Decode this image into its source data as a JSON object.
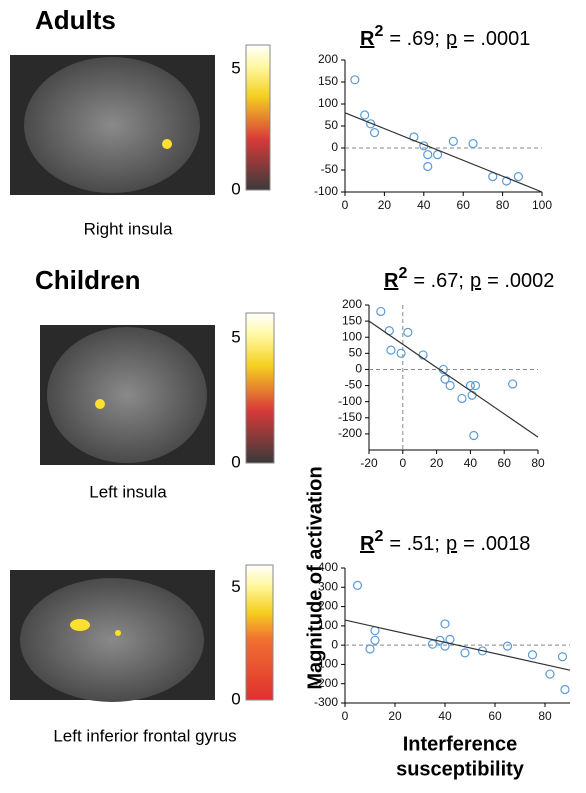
{
  "sections": [
    {
      "title": "Adults",
      "region": "Right insula",
      "colorbar_range": [
        0,
        6
      ],
      "colorbar_ticks": [
        0,
        5
      ]
    },
    {
      "title": "Children",
      "region": "Left insula",
      "colorbar_range": [
        0,
        6
      ],
      "colorbar_ticks": [
        0,
        5
      ]
    },
    {
      "region": "Left inferior frontal gyrus",
      "colorbar_range": [
        0,
        6
      ],
      "colorbar_ticks": [
        0,
        5
      ]
    }
  ],
  "y_axis_label": "Magnitude of activation",
  "x_axis_label": [
    "Interference",
    "susceptibility"
  ],
  "chart_data": [
    {
      "type": "scatter",
      "r_label": "R",
      "r_exponent": "2",
      "r_value": "= .69;",
      "p_label": "p",
      "p_value": "= .0001",
      "x": [
        5,
        10,
        13,
        15,
        35,
        40,
        42,
        42,
        47,
        55,
        65,
        75,
        82,
        88
      ],
      "y": [
        155,
        75,
        55,
        35,
        25,
        5,
        -15,
        -42,
        -15,
        15,
        10,
        -65,
        -75,
        -65
      ],
      "fit": {
        "x": [
          0,
          100
        ],
        "y": [
          80,
          -100
        ]
      },
      "color": "#5b9bd5",
      "xlim": [
        0,
        100
      ],
      "ylim": [
        -100,
        200
      ],
      "xticks": [
        0,
        20,
        40,
        60,
        80,
        100
      ],
      "yticks": [
        -100,
        -50,
        0,
        50,
        100,
        150,
        200
      ],
      "zero_lines": [
        "y"
      ]
    },
    {
      "type": "scatter",
      "r_label": "R",
      "r_exponent": "2",
      "r_value": "= .67;",
      "p_label": "p",
      "p_value": "= .0002",
      "x": [
        -13,
        -8,
        -7,
        -1,
        3,
        12,
        24,
        25,
        28,
        35,
        40,
        41,
        42,
        43,
        65
      ],
      "y": [
        180,
        120,
        60,
        50,
        115,
        45,
        0,
        -30,
        -50,
        -90,
        -50,
        -80,
        -205,
        -50,
        -45
      ],
      "fit": {
        "x": [
          -20,
          80
        ],
        "y": [
          150,
          -210
        ]
      },
      "color": "#5b9bd5",
      "xlim": [
        -20,
        80
      ],
      "ylim": [
        -250,
        200
      ],
      "xticks": [
        -20,
        0,
        20,
        40,
        60,
        80
      ],
      "yticks": [
        -200,
        -150,
        -100,
        -50,
        0,
        50,
        100,
        150,
        200
      ],
      "zero_lines": [
        "x",
        "y"
      ]
    },
    {
      "type": "scatter",
      "r_label": "R",
      "r_exponent": "2",
      "r_value": "= .51;",
      "p_label": "p",
      "p_value": "= .0018",
      "x": [
        5,
        10,
        12,
        12,
        35,
        38,
        40,
        42,
        40,
        48,
        55,
        65,
        75,
        82,
        87,
        88
      ],
      "y": [
        310,
        -20,
        75,
        25,
        5,
        25,
        110,
        30,
        -5,
        -40,
        -30,
        -5,
        -50,
        -150,
        -60,
        -230
      ],
      "fit": {
        "x": [
          0,
          90
        ],
        "y": [
          130,
          -130
        ]
      },
      "color": "#5b9bd5",
      "xlim": [
        0,
        90
      ],
      "ylim": [
        -300,
        400
      ],
      "xticks": [
        0,
        20,
        40,
        60,
        80
      ],
      "yticks": [
        -300,
        -200,
        -100,
        0,
        100,
        200,
        300,
        400
      ],
      "zero_lines": [
        "y"
      ]
    }
  ]
}
